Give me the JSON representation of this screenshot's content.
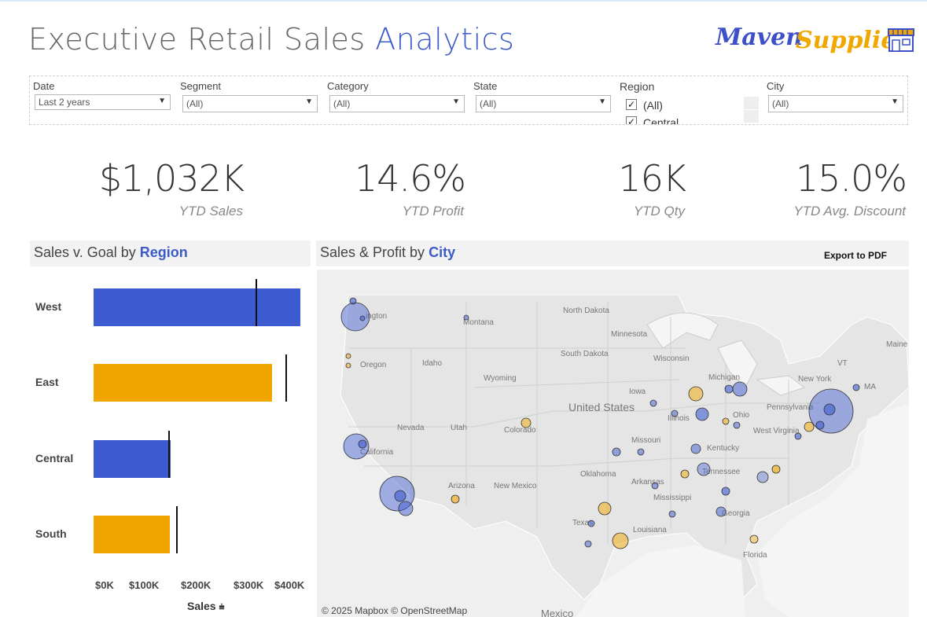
{
  "header": {
    "title_main": "Executive Retail Sales",
    "title_accent": "Analytics",
    "logo_word1": "Maven",
    "logo_word2": "Supplies"
  },
  "filters": {
    "date": {
      "label": "Date",
      "value": "Last 2 years"
    },
    "segment": {
      "label": "Segment",
      "value": "(All)"
    },
    "category": {
      "label": "Category",
      "value": "(All)"
    },
    "state": {
      "label": "State",
      "value": "(All)"
    },
    "region": {
      "label": "Region",
      "options": [
        "(All)",
        "Central"
      ]
    },
    "city": {
      "label": "City",
      "value": "(All)"
    }
  },
  "kpis": [
    {
      "value": "$1,032K",
      "label": "YTD Sales"
    },
    {
      "value": "14.6%",
      "label": "YTD Profit"
    },
    {
      "value": "16K",
      "label": "YTD Qty"
    },
    {
      "value": "15.0%",
      "label": "YTD Avg. Discount"
    }
  ],
  "sales_panel": {
    "title_prefix": "Sales v. Goal by",
    "title_accent": "Region",
    "axis_title": "Sales"
  },
  "map_panel": {
    "title_prefix": "Sales & Profit by",
    "title_accent": "City",
    "export_label": "Export to PDF",
    "copyright": "© 2025 Mapbox © OpenStreetMap",
    "labels": {
      "washington": "ington",
      "montana": "Montana",
      "north_dakota": "North Dakota",
      "minnesota": "Minnesota",
      "wisconsin": "Wisconsin",
      "michigan": "Michigan",
      "new_york": "New York",
      "maine": "Maine",
      "oregon": "Oregon",
      "idaho": "Idaho",
      "wyoming": "Wyoming",
      "south_dakota": "South Dakota",
      "iowa": "Iowa",
      "illinois": "Illinois",
      "pennsylvania": "Pennsylvania",
      "ohio": "Ohio",
      "nevada": "Nevada",
      "utah": "Utah",
      "colorado": "Colorado",
      "united_states": "United States",
      "missouri": "Missouri",
      "kentucky": "Kentucky",
      "west_virginia": "West Virginia",
      "california": "California",
      "arizona": "Arizona",
      "new_mexico": "New Mexico",
      "oklahoma": "Oklahoma",
      "arkansas": "Arkansas",
      "tennessee": "Tennessee",
      "mississippi": "Mississippi",
      "georgia": "Georgia",
      "texas": "Texas",
      "louisiana": "Louisiana",
      "florida": "Florida",
      "mexico": "Mexico",
      "ma": "MA",
      "vt": "VT"
    }
  },
  "colors": {
    "blue": "#3d5bd0",
    "orange": "#f0a500",
    "accent": "#3d5bc9"
  },
  "chart_data": {
    "type": "bar",
    "orientation": "horizontal",
    "categories": [
      "West",
      "East",
      "Central",
      "South"
    ],
    "series": [
      {
        "values": [
          415,
          358,
          155,
          153
        ]
      }
    ],
    "goal": [
      325,
      385,
      150,
      165
    ],
    "bar_colors": [
      "#3d5bd0",
      "#f0a500",
      "#3d5bd0",
      "#f0a500"
    ],
    "xticks": [
      "$0K",
      "$100K",
      "$200K",
      "$300K",
      "$400K"
    ],
    "xlim": [
      0,
      420
    ],
    "xlabel": "Sales"
  }
}
